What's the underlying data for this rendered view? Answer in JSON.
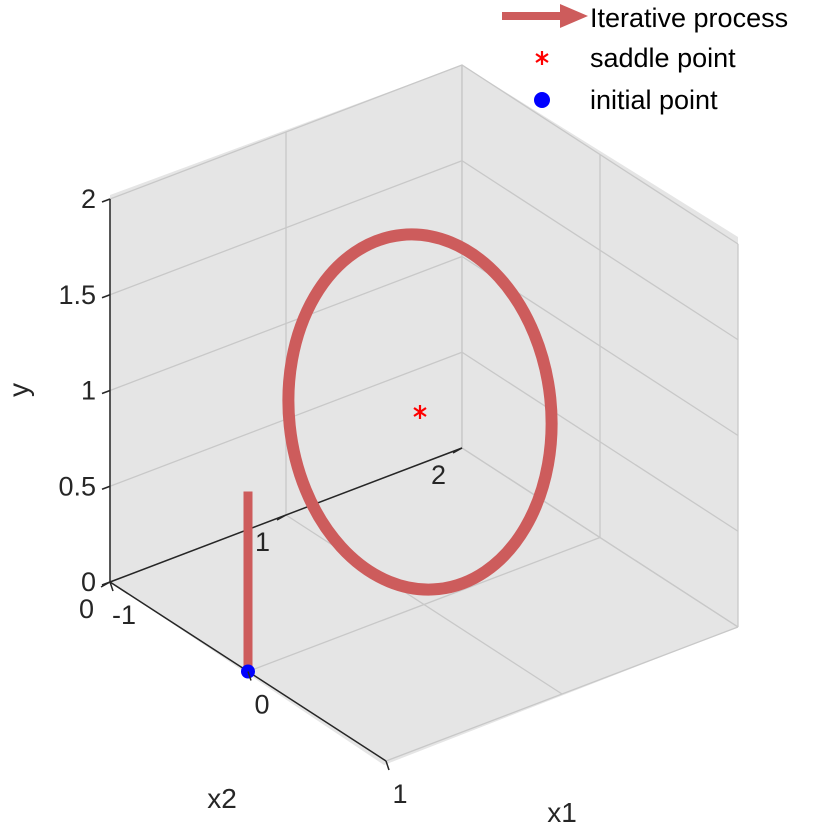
{
  "chart_data": {
    "type": "line3d",
    "title": "",
    "xlabel": "x1",
    "ylabel": "x2",
    "zlabel": "y",
    "xlim": [
      -1,
      1
    ],
    "ylim": [
      0,
      2
    ],
    "zlim": [
      0,
      2
    ],
    "x_ticks": [
      "-1",
      "0",
      "1"
    ],
    "y_ticks": [
      "0",
      "1",
      "2"
    ],
    "z_ticks": [
      "0",
      "0.5",
      "1",
      "1.5",
      "2"
    ],
    "grid": true,
    "legend_position": "top-right",
    "series": [
      {
        "name": "Iterative process",
        "kind": "trajectory",
        "color": "#cd5c5c",
        "description_points_x1_x2_y": [
          [
            0.0,
            0.0,
            0.0
          ],
          [
            0.0,
            0.0,
            0.55
          ],
          [
            -0.05,
            0.05,
            1.05
          ],
          [
            -0.2,
            0.2,
            1.55
          ],
          [
            -0.45,
            0.45,
            1.78
          ],
          [
            -0.75,
            0.75,
            1.55
          ],
          [
            -0.85,
            0.85,
            1.0
          ],
          [
            -0.75,
            0.75,
            0.45
          ],
          [
            -0.5,
            0.5,
            0.15
          ],
          [
            -0.2,
            0.2,
            0.3
          ],
          [
            -0.05,
            0.05,
            0.85
          ],
          [
            0.0,
            0.0,
            1.05
          ]
        ]
      },
      {
        "name": "saddle point",
        "kind": "marker",
        "marker": "asterisk",
        "color": "#ff0000",
        "points_x1_x2_y": [
          [
            -0.45,
            0.45,
            1.0
          ]
        ]
      },
      {
        "name": "initial point",
        "kind": "marker",
        "marker": "dot",
        "color": "#0000ff",
        "points_x1_x2_y": [
          [
            0.0,
            0.0,
            0.0
          ]
        ]
      }
    ]
  }
}
